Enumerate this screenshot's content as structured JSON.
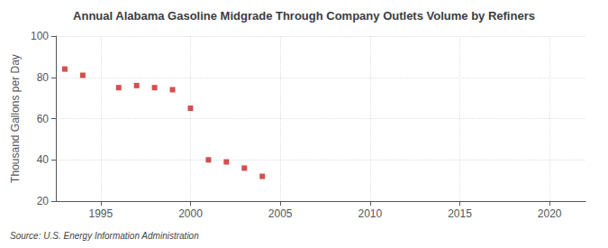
{
  "chart_data": {
    "type": "scatter",
    "title": "Annual Alabama Gasoline Midgrade Through Company Outlets Volume by Refiners",
    "ylabel": "Thousand Gallons per Day",
    "source": "Source: U.S. Energy Information Administration",
    "x": [
      1993,
      1994,
      1996,
      1997,
      1998,
      1999,
      2000,
      2001,
      2002,
      2003,
      2004
    ],
    "values": [
      84,
      81,
      75,
      76,
      75,
      74,
      65,
      40,
      39,
      36,
      32
    ],
    "color": "#cc2222",
    "marker": "square",
    "xlim": [
      1992.5,
      2022
    ],
    "ylim": [
      20,
      100
    ],
    "xticks": [
      1995,
      2000,
      2005,
      2010,
      2015,
      2020
    ],
    "yticks": [
      20,
      40,
      60,
      80,
      100
    ],
    "grid": true
  }
}
